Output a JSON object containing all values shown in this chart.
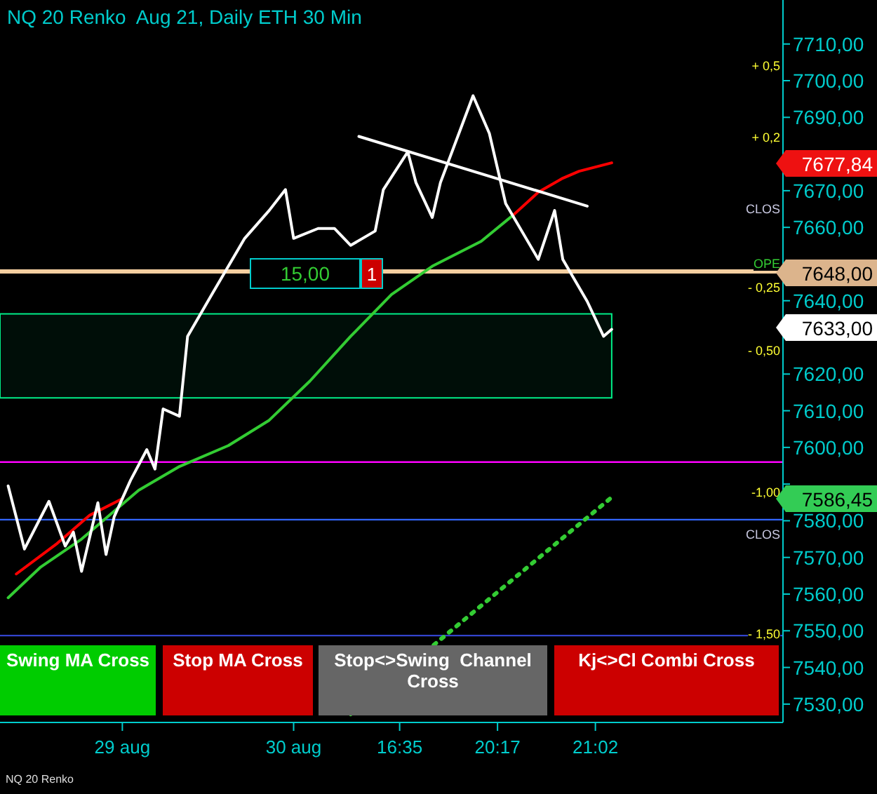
{
  "chart_data": {
    "type": "line",
    "title": "NQ 20 Renko  Aug 21, Daily ETH 30 Min",
    "categories": [
      null,
      null,
      null,
      null,
      null,
      null,
      null,
      null,
      null,
      null,
      null,
      null,
      null,
      null,
      null,
      "29 aug",
      null,
      null,
      null,
      null,
      null,
      null,
      null,
      null,
      null,
      null,
      null,
      null,
      null,
      null,
      null,
      null,
      null,
      null,
      null,
      null,
      "30 aug",
      null,
      null,
      null,
      null,
      null,
      null,
      null,
      null,
      null,
      null,
      null,
      null,
      "16:35",
      null,
      null,
      null,
      null,
      null,
      null,
      null,
      null,
      null,
      null,
      null,
      "20:17",
      null,
      null,
      null,
      null,
      null,
      null,
      null,
      null,
      null,
      null,
      null,
      "21:02",
      null,
      null,
      null,
      null,
      null,
      null,
      null,
      null,
      null,
      null,
      null,
      null,
      null,
      null,
      null,
      null,
      null,
      null,
      null,
      null,
      null,
      null,
      null
    ],
    "ylim": [
      7525,
      7722
    ],
    "yticks": [
      {
        "value": 7530,
        "label": "7530,00"
      },
      {
        "value": 7540,
        "label": "7540,00"
      },
      {
        "value": 7550,
        "label": "7550,00"
      },
      {
        "value": 7560,
        "label": "7560,00"
      },
      {
        "value": 7570,
        "label": "7570,00"
      },
      {
        "value": 7580,
        "label": "7580,00"
      },
      {
        "value": 7590,
        "label": null
      },
      {
        "value": 7600,
        "label": "7600,00"
      },
      {
        "value": 7610,
        "label": "7610,00"
      },
      {
        "value": 7620,
        "label": "7620,00"
      },
      {
        "value": 7630,
        "label": null
      },
      {
        "value": 7640,
        "label": "7640,00"
      },
      {
        "value": 7650,
        "label": null
      },
      {
        "value": 7660,
        "label": "7660,00"
      },
      {
        "value": 7670,
        "label": "7670,00"
      },
      {
        "value": 7680,
        "label": null
      },
      {
        "value": 7690,
        "label": "7690,00"
      },
      {
        "value": 7700,
        "label": "7700,00"
      },
      {
        "value": 7710,
        "label": "7710,00"
      }
    ],
    "grid": false,
    "legend": false,
    "marker": "none",
    "series": [
      {
        "color": "#33cc33",
        "values": [
          null,
          7559.0,
          null,
          null,
          null,
          7567.4,
          null,
          null,
          null,
          null,
          7575.0,
          null,
          null,
          null,
          7582.6,
          null,
          null,
          7588.3,
          null,
          null,
          null,
          null,
          7594.8,
          null,
          null,
          null,
          null,
          null,
          7600.5,
          null,
          null,
          null,
          null,
          7607.4,
          null,
          null,
          null,
          null,
          7618.1,
          null,
          null,
          null,
          null,
          7630.3,
          null,
          null,
          null,
          null,
          7641.7,
          null,
          null,
          null,
          null,
          7649.4,
          null,
          null,
          null,
          null,
          null,
          7656.2,
          null,
          null,
          null,
          7663.5,
          null,
          null,
          null,
          null,
          null,
          null,
          null,
          null,
          null,
          null,
          null,
          null,
          null,
          null,
          null,
          null,
          null,
          null,
          null,
          null,
          null,
          null,
          null,
          null,
          null,
          null,
          null,
          null,
          null,
          null,
          null,
          null,
          null
        ]
      },
      {
        "color": "#ff0000",
        "values": [
          null,
          null,
          7565.5,
          null,
          null,
          null,
          null,
          7573.8,
          null,
          null,
          null,
          7581.5,
          null,
          null,
          null,
          7586.0,
          null,
          null,
          null,
          null,
          null,
          null,
          null,
          null,
          null,
          null,
          null,
          null,
          null,
          null,
          null,
          null,
          null,
          null,
          null,
          null,
          null,
          null,
          null,
          null,
          null,
          null,
          null,
          null,
          null,
          null,
          null,
          null,
          null,
          null,
          null,
          null,
          null,
          null,
          null,
          null,
          null,
          null,
          null,
          null,
          null,
          null,
          null,
          null,
          null,
          null,
          null,
          null,
          null,
          null,
          null,
          null,
          null,
          null,
          null,
          null,
          null,
          null,
          null,
          null,
          null,
          null,
          null,
          null,
          null,
          null,
          null,
          null,
          null,
          null,
          null,
          null,
          null,
          null,
          null,
          null,
          null
        ]
      },
      {
        "color": "#ff0000",
        "values": [
          null,
          null,
          null,
          null,
          null,
          null,
          null,
          null,
          null,
          null,
          null,
          null,
          null,
          null,
          null,
          null,
          null,
          null,
          null,
          null,
          null,
          null,
          null,
          null,
          null,
          null,
          null,
          null,
          null,
          null,
          null,
          null,
          null,
          null,
          null,
          null,
          null,
          null,
          null,
          null,
          null,
          null,
          null,
          null,
          null,
          null,
          null,
          null,
          null,
          null,
          null,
          null,
          null,
          null,
          null,
          null,
          null,
          null,
          null,
          null,
          null,
          null,
          null,
          7663.5,
          null,
          null,
          7669.6,
          null,
          null,
          7673.4,
          null,
          7675.3,
          null,
          null,
          null,
          7677.6,
          null,
          null,
          null,
          null,
          null,
          null,
          null,
          null,
          null,
          null,
          null,
          null,
          null,
          null,
          null,
          null,
          null,
          null,
          null,
          null,
          null
        ]
      },
      {
        "color": "#ffffff",
        "values": [
          null,
          7589.5,
          null,
          7572.3,
          null,
          null,
          7585.3,
          null,
          7573.1,
          7576.9,
          7566.2,
          null,
          7584.9,
          7570.8,
          7581.1,
          null,
          7591.0,
          null,
          7599.4,
          7594.1,
          7610.5,
          null,
          7608.5,
          7630.3,
          null,
          null,
          7641.8,
          null,
          null,
          null,
          7657.0,
          null,
          null,
          7664.6,
          null,
          7670.3,
          7657.0,
          null,
          null,
          7659.7,
          null,
          7659.7,
          null,
          7655.1,
          null,
          null,
          7659.0,
          7670.3,
          null,
          null,
          7680.6,
          7672.2,
          null,
          7662.7,
          7672.2,
          null,
          null,
          null,
          7695.9,
          null,
          7685.6,
          null,
          7666.5,
          null,
          null,
          null,
          7651.3,
          null,
          7664.6,
          7651.3,
          null,
          null,
          7639.8,
          null,
          7630.3,
          7632.2,
          null,
          null,
          null,
          null,
          null,
          null,
          null,
          null,
          null,
          null,
          null,
          null,
          null,
          null,
          null,
          null,
          null,
          null,
          null,
          null,
          null
        ]
      },
      {
        "color": "#ffffff",
        "values": [
          null,
          null,
          null,
          null,
          null,
          null,
          null,
          null,
          null,
          null,
          null,
          null,
          null,
          null,
          null,
          null,
          null,
          null,
          null,
          null,
          null,
          null,
          null,
          null,
          null,
          null,
          null,
          null,
          null,
          null,
          null,
          null,
          null,
          null,
          null,
          null,
          null,
          null,
          null,
          null,
          null,
          null,
          null,
          null,
          7684.8,
          null,
          null,
          null,
          null,
          null,
          null,
          null,
          null,
          null,
          null,
          null,
          null,
          null,
          null,
          null,
          null,
          null,
          null,
          null,
          null,
          null,
          null,
          null,
          null,
          null,
          null,
          null,
          7665.8,
          null,
          null,
          null,
          null,
          null,
          null,
          null,
          null,
          null,
          null,
          null,
          null,
          null,
          null,
          null,
          null,
          null,
          null,
          null,
          null,
          null,
          null,
          null,
          null
        ]
      },
      {
        "color": "#33cc33",
        "line_style": "dotted",
        "values": [
          null,
          null,
          null,
          null,
          null,
          null,
          null,
          null,
          null,
          null,
          null,
          null,
          null,
          null,
          null,
          null,
          null,
          null,
          null,
          null,
          null,
          null,
          null,
          null,
          null,
          null,
          null,
          null,
          null,
          null,
          null,
          null,
          null,
          null,
          null,
          null,
          null,
          null,
          null,
          null,
          null,
          null,
          null,
          7527.3,
          null,
          null,
          null,
          null,
          null,
          null,
          null,
          null,
          null,
          null,
          null,
          null,
          null,
          null,
          null,
          null,
          null,
          null,
          null,
          null,
          null,
          null,
          null,
          null,
          null,
          null,
          null,
          null,
          null,
          null,
          null,
          7586.4,
          null,
          null,
          null,
          null,
          null,
          null,
          null,
          null,
          null,
          null,
          null,
          null,
          null,
          null,
          null,
          null,
          null,
          null,
          null,
          null,
          null
        ]
      }
    ],
    "ref_lines": [
      {
        "axis": "y",
        "value": 7648,
        "color": "#f5cfa0"
      },
      {
        "axis": "y",
        "value": 7596,
        "color": "#ff00ff"
      },
      {
        "axis": "y",
        "value": 7580.3,
        "color": "#3366ff"
      },
      {
        "axis": "y",
        "value": 7548.7,
        "color": "#3344cc"
      }
    ],
    "bands": [
      {
        "axis": "y",
        "from": 7613.5,
        "to": 7636.4,
        "color": "#00ee88"
      }
    ],
    "annotations": [
      "15,00",
      "1",
      "+ 0,5",
      "+ 0,2",
      "- 0,25",
      "- 0,50",
      "-1,00",
      "- 1,50",
      "CLOS",
      "OPE",
      "CLOS",
      "Swing MA Cross",
      "Stop MA Cross",
      "Stop<>Swing  Channel Cross",
      "Kj<>Cl Combi Cross",
      "NQ 20 Renko",
      "7677,84",
      "7648,00",
      "7633,00",
      "7586,45"
    ]
  }
}
